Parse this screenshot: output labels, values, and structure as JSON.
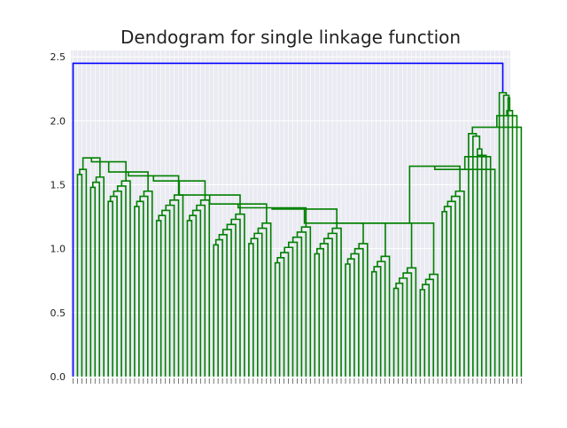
{
  "chart_data": {
    "type": "dendrogram",
    "title": "Dendogram for single linkage function",
    "xlabel": "",
    "ylabel": "",
    "ylim": [
      0,
      2.55
    ],
    "yticks": [
      0.0,
      0.5,
      1.0,
      1.5,
      2.0,
      2.5
    ],
    "ytick_labels": [
      "0.0",
      "0.5",
      "1.0",
      "1.5",
      "2.0",
      "2.5"
    ],
    "grid": true,
    "background": "#eaeaf2",
    "colors": {
      "root_link": "#0000ff",
      "cluster_links": "#008000"
    },
    "leaf_count": 100,
    "root_height": 2.45,
    "chain_heights": [
      2.22,
      2.2,
      2.18,
      2.08,
      2.04,
      1.95,
      1.9,
      1.88,
      1.78,
      1.74,
      1.73,
      1.72,
      1.62
    ],
    "big_cluster_height": 1.645,
    "subcluster_heights": [
      1.62,
      1.56,
      1.53,
      1.45,
      1.42,
      1.38,
      1.27,
      1.2,
      1.17,
      1.16,
      1.04,
      0.94,
      0.85,
      0.8,
      0.73,
      0.68,
      0.62,
      0.55,
      0.45,
      0.19
    ]
  }
}
